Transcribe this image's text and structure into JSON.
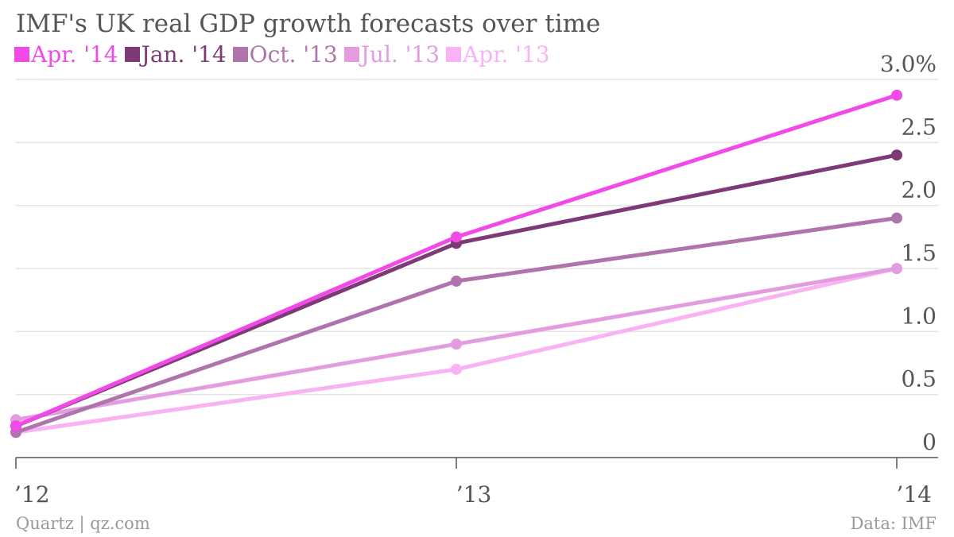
{
  "chart_data": {
    "type": "line",
    "title": "IMF's UK real GDP growth forecasts over time",
    "x": [
      "’12",
      "’13",
      "’14"
    ],
    "y_ticks": [
      {
        "value": 0,
        "label": "0"
      },
      {
        "value": 0.5,
        "label": "0.5"
      },
      {
        "value": 1.0,
        "label": "1.0"
      },
      {
        "value": 1.5,
        "label": "1.5"
      },
      {
        "value": 2.0,
        "label": "2.0"
      },
      {
        "value": 2.5,
        "label": "2.5"
      },
      {
        "value": 3.0,
        "label": "3.0%"
      }
    ],
    "ylim": [
      0,
      3.0
    ],
    "grid": true,
    "legend_position": "top-left",
    "series": [
      {
        "name": "Apr. '14",
        "color": "#f24ae8",
        "values": [
          0.25,
          1.75,
          2.875
        ]
      },
      {
        "name": "Jan. '14",
        "color": "#7d3a76",
        "values": [
          0.25,
          1.7,
          2.4
        ]
      },
      {
        "name": "Oct. '13",
        "color": "#b074ad",
        "values": [
          0.2,
          1.4,
          1.9
        ]
      },
      {
        "name": "Jul. '13",
        "color": "#e39ce0",
        "values": [
          0.3,
          0.9,
          1.5
        ]
      },
      {
        "name": "Apr. '13",
        "color": "#f9b3f5",
        "values": [
          0.2,
          0.7,
          1.5
        ]
      }
    ]
  },
  "footer": {
    "source_left": "Quartz | qz.com",
    "source_right": "Data: IMF"
  }
}
